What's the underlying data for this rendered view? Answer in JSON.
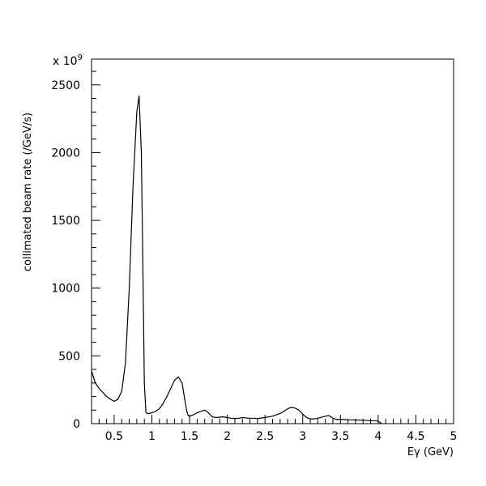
{
  "chart_data": {
    "type": "line",
    "title": "",
    "xlabel": "Eγ (GeV)",
    "ylabel": "collimated beam rate (/GeV/s)",
    "y_multiplier": {
      "prefix": "x 10",
      "exponent": "9"
    },
    "xlim": [
      0.2,
      5.0
    ],
    "ylim": [
      0,
      2500
    ],
    "x_ticks": [
      0.5,
      1,
      1.5,
      2,
      2.5,
      3,
      3.5,
      4,
      4.5,
      5
    ],
    "x_tick_labels": [
      "0.5",
      "1",
      "1.5",
      "2",
      "2.5",
      "3",
      "3.5",
      "4",
      "4.5",
      "5"
    ],
    "y_ticks": [
      0,
      500,
      1000,
      1500,
      2000,
      2500
    ],
    "y_tick_labels": [
      "0",
      "500",
      "1000",
      "1500",
      "2000",
      "2500"
    ],
    "grid": false,
    "legend": "none",
    "series": [
      {
        "x": [
          0.2,
          0.25,
          0.3,
          0.35,
          0.4,
          0.45,
          0.5,
          0.55,
          0.6,
          0.65,
          0.7,
          0.75,
          0.8,
          0.83,
          0.86,
          0.88,
          0.9,
          0.92,
          0.94,
          0.96,
          0.98,
          1.0,
          1.05,
          1.1,
          1.15,
          1.2,
          1.25,
          1.3,
          1.35,
          1.4,
          1.43,
          1.46,
          1.48,
          1.5,
          1.52,
          1.55,
          1.6,
          1.65,
          1.7,
          1.75,
          1.8,
          1.85,
          1.9,
          1.95,
          2.0,
          2.05,
          2.1,
          2.15,
          2.2,
          2.25,
          2.3,
          2.4,
          2.5,
          2.6,
          2.7,
          2.75,
          2.8,
          2.85,
          2.9,
          2.95,
          3.0,
          3.05,
          3.1,
          3.15,
          3.2,
          3.3,
          3.35,
          3.4,
          3.45,
          3.5,
          3.55,
          3.6,
          3.7,
          3.8,
          3.9,
          4.0,
          4.02,
          4.05
        ],
        "y": [
          390,
          300,
          260,
          230,
          200,
          180,
          165,
          180,
          240,
          450,
          1000,
          1750,
          2300,
          2420,
          2000,
          1200,
          300,
          85,
          75,
          75,
          78,
          80,
          90,
          110,
          150,
          200,
          260,
          320,
          345,
          300,
          200,
          100,
          60,
          55,
          58,
          65,
          80,
          90,
          100,
          80,
          50,
          45,
          48,
          50,
          45,
          40,
          38,
          40,
          45,
          42,
          40,
          38,
          45,
          55,
          75,
          90,
          110,
          120,
          115,
          100,
          70,
          45,
          35,
          35,
          40,
          55,
          60,
          40,
          30,
          32,
          30,
          28,
          27,
          25,
          22,
          20,
          10,
          0
        ]
      }
    ]
  }
}
